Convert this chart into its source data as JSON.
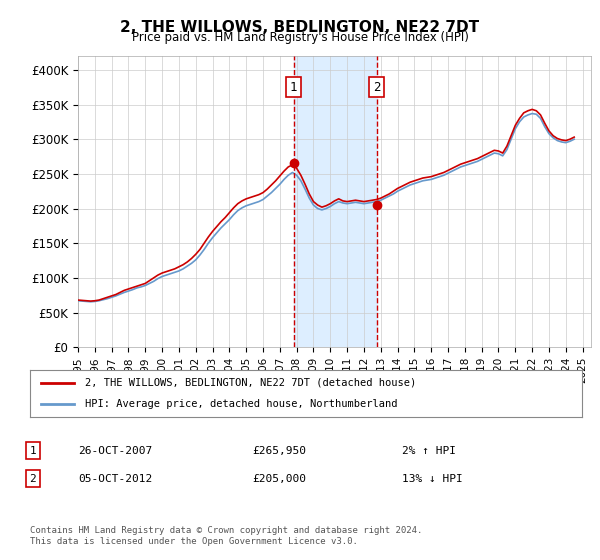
{
  "title": "2, THE WILLOWS, BEDLINGTON, NE22 7DT",
  "subtitle": "Price paid vs. HM Land Registry's House Price Index (HPI)",
  "ylabel_ticks": [
    "£0",
    "£50K",
    "£100K",
    "£150K",
    "£200K",
    "£250K",
    "£300K",
    "£350K",
    "£400K"
  ],
  "ytick_vals": [
    0,
    50000,
    100000,
    150000,
    200000,
    250000,
    300000,
    350000,
    400000
  ],
  "ylim": [
    0,
    420000
  ],
  "xlim_start": 1995.0,
  "xlim_end": 2025.5,
  "background_color": "#ffffff",
  "grid_color": "#cccccc",
  "sale1_x": 2007.82,
  "sale1_y": 265950,
  "sale2_x": 2012.76,
  "sale2_y": 205000,
  "sale1_label": "1",
  "sale2_label": "2",
  "legend_line1": "2, THE WILLOWS, BEDLINGTON, NE22 7DT (detached house)",
  "legend_line2": "HPI: Average price, detached house, Northumberland",
  "table_row1_num": "1",
  "table_row1_date": "26-OCT-2007",
  "table_row1_price": "£265,950",
  "table_row1_hpi": "2% ↑ HPI",
  "table_row2_num": "2",
  "table_row2_date": "05-OCT-2012",
  "table_row2_price": "£205,000",
  "table_row2_hpi": "13% ↓ HPI",
  "footer": "Contains HM Land Registry data © Crown copyright and database right 2024.\nThis data is licensed under the Open Government Licence v3.0.",
  "red_line_color": "#cc0000",
  "blue_line_color": "#6699cc",
  "shade_color": "#ddeeff",
  "hpi_data_x": [
    1995.0,
    1995.25,
    1995.5,
    1995.75,
    1996.0,
    1996.25,
    1996.5,
    1996.75,
    1997.0,
    1997.25,
    1997.5,
    1997.75,
    1998.0,
    1998.25,
    1998.5,
    1998.75,
    1999.0,
    1999.25,
    1999.5,
    1999.75,
    2000.0,
    2000.25,
    2000.5,
    2000.75,
    2001.0,
    2001.25,
    2001.5,
    2001.75,
    2002.0,
    2002.25,
    2002.5,
    2002.75,
    2003.0,
    2003.25,
    2003.5,
    2003.75,
    2004.0,
    2004.25,
    2004.5,
    2004.75,
    2005.0,
    2005.25,
    2005.5,
    2005.75,
    2006.0,
    2006.25,
    2006.5,
    2006.75,
    2007.0,
    2007.25,
    2007.5,
    2007.75,
    2008.0,
    2008.25,
    2008.5,
    2008.75,
    2009.0,
    2009.25,
    2009.5,
    2009.75,
    2010.0,
    2010.25,
    2010.5,
    2010.75,
    2011.0,
    2011.25,
    2011.5,
    2011.75,
    2012.0,
    2012.25,
    2012.5,
    2012.75,
    2013.0,
    2013.25,
    2013.5,
    2013.75,
    2014.0,
    2014.25,
    2014.5,
    2014.75,
    2015.0,
    2015.25,
    2015.5,
    2015.75,
    2016.0,
    2016.25,
    2016.5,
    2016.75,
    2017.0,
    2017.25,
    2017.5,
    2017.75,
    2018.0,
    2018.25,
    2018.5,
    2018.75,
    2019.0,
    2019.25,
    2019.5,
    2019.75,
    2020.0,
    2020.25,
    2020.5,
    2020.75,
    2021.0,
    2021.25,
    2021.5,
    2021.75,
    2022.0,
    2022.25,
    2022.5,
    2022.75,
    2023.0,
    2023.25,
    2023.5,
    2023.75,
    2024.0,
    2024.25,
    2024.5
  ],
  "hpi_data_y": [
    67000,
    66500,
    66000,
    65500,
    66000,
    67000,
    68500,
    70000,
    72000,
    74000,
    76500,
    79000,
    81000,
    83000,
    85500,
    87000,
    89000,
    92000,
    95000,
    99000,
    102000,
    104000,
    106000,
    108000,
    110000,
    113000,
    117000,
    121000,
    126000,
    133000,
    141000,
    150000,
    158000,
    165000,
    172000,
    178000,
    184000,
    191000,
    197000,
    201000,
    204000,
    206000,
    208000,
    210000,
    213000,
    218000,
    223000,
    229000,
    235000,
    242000,
    248000,
    252000,
    248000,
    240000,
    228000,
    215000,
    205000,
    200000,
    198000,
    200000,
    203000,
    207000,
    210000,
    208000,
    207000,
    208000,
    209000,
    208000,
    207000,
    208000,
    209000,
    210000,
    212000,
    215000,
    218000,
    221000,
    225000,
    228000,
    231000,
    234000,
    236000,
    238000,
    240000,
    241000,
    242000,
    244000,
    246000,
    248000,
    251000,
    254000,
    257000,
    260000,
    262000,
    264000,
    266000,
    268000,
    271000,
    274000,
    277000,
    280000,
    279000,
    276000,
    285000,
    300000,
    315000,
    325000,
    332000,
    335000,
    337000,
    336000,
    330000,
    318000,
    308000,
    302000,
    298000,
    296000,
    295000,
    297000,
    300000
  ],
  "price_data_x": [
    1995.0,
    1995.25,
    1995.5,
    1995.75,
    1996.0,
    1996.25,
    1996.5,
    1996.75,
    1997.0,
    1997.25,
    1997.5,
    1997.75,
    1998.0,
    1998.25,
    1998.5,
    1998.75,
    1999.0,
    1999.25,
    1999.5,
    1999.75,
    2000.0,
    2000.25,
    2000.5,
    2000.75,
    2001.0,
    2001.25,
    2001.5,
    2001.75,
    2002.0,
    2002.25,
    2002.5,
    2002.75,
    2003.0,
    2003.25,
    2003.5,
    2003.75,
    2004.0,
    2004.25,
    2004.5,
    2004.75,
    2005.0,
    2005.25,
    2005.5,
    2005.75,
    2006.0,
    2006.25,
    2006.5,
    2006.75,
    2007.0,
    2007.25,
    2007.5,
    2007.75,
    2008.0,
    2008.25,
    2008.5,
    2008.75,
    2009.0,
    2009.25,
    2009.5,
    2009.75,
    2010.0,
    2010.25,
    2010.5,
    2010.75,
    2011.0,
    2011.25,
    2011.5,
    2011.75,
    2012.0,
    2012.25,
    2012.5,
    2012.75,
    2013.0,
    2013.25,
    2013.5,
    2013.75,
    2014.0,
    2014.25,
    2014.5,
    2014.75,
    2015.0,
    2015.25,
    2015.5,
    2015.75,
    2016.0,
    2016.25,
    2016.5,
    2016.75,
    2017.0,
    2017.25,
    2017.5,
    2017.75,
    2018.0,
    2018.25,
    2018.5,
    2018.75,
    2019.0,
    2019.25,
    2019.5,
    2019.75,
    2020.0,
    2020.25,
    2020.5,
    2020.75,
    2021.0,
    2021.25,
    2021.5,
    2021.75,
    2022.0,
    2022.25,
    2022.5,
    2022.75,
    2023.0,
    2023.25,
    2023.5,
    2023.75,
    2024.0,
    2024.25,
    2024.5
  ],
  "price_data_y": [
    68000,
    67500,
    67000,
    66500,
    67000,
    68000,
    70000,
    72000,
    74000,
    76000,
    79000,
    82000,
    84000,
    86000,
    88000,
    90000,
    92000,
    96000,
    100000,
    104000,
    107000,
    109000,
    111000,
    113000,
    116000,
    119000,
    123000,
    128000,
    134000,
    141000,
    150000,
    159000,
    167000,
    174000,
    181000,
    187000,
    194000,
    201000,
    207000,
    211000,
    214000,
    216000,
    218000,
    220000,
    223000,
    228000,
    234000,
    240000,
    247000,
    254000,
    260000,
    263000,
    258000,
    248000,
    235000,
    221000,
    210000,
    205000,
    202000,
    204000,
    207000,
    211000,
    214000,
    211000,
    210000,
    211000,
    212000,
    211000,
    210000,
    211000,
    212000,
    213000,
    215000,
    218000,
    221000,
    225000,
    229000,
    232000,
    235000,
    238000,
    240000,
    242000,
    244000,
    245000,
    246000,
    248000,
    250000,
    252000,
    255000,
    258000,
    261000,
    264000,
    266000,
    268000,
    270000,
    272000,
    275000,
    278000,
    281000,
    284000,
    283000,
    280000,
    290000,
    305000,
    320000,
    330000,
    338000,
    341000,
    343000,
    341000,
    335000,
    323000,
    312000,
    305000,
    301000,
    299000,
    298000,
    300000,
    303000
  ]
}
